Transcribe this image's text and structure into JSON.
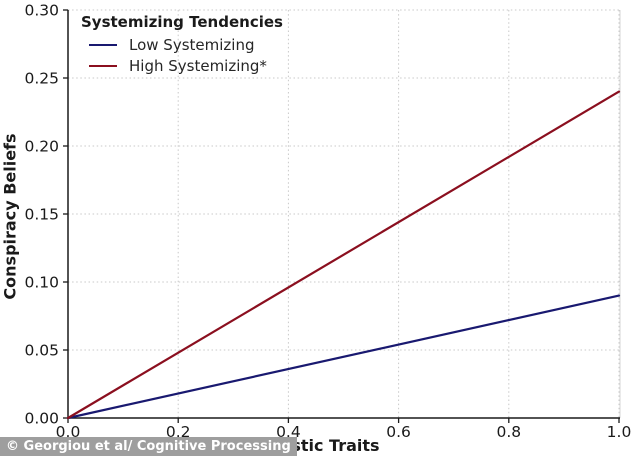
{
  "chart_data": {
    "type": "line",
    "title": "",
    "xlabel": "Autistic Traits",
    "ylabel": "Conspiracy Beliefs",
    "xlim": [
      0.0,
      1.0
    ],
    "ylim": [
      0.0,
      0.3
    ],
    "x_ticks": [
      0.0,
      0.2,
      0.4,
      0.6,
      0.8,
      1.0
    ],
    "x_tick_labels": [
      "0.0",
      "0.2",
      "0.4",
      "0.6",
      "0.8",
      "1.0"
    ],
    "y_ticks": [
      0.0,
      0.05,
      0.1,
      0.15,
      0.2,
      0.25,
      0.3
    ],
    "y_tick_labels": [
      "0.00",
      "0.05",
      "0.10",
      "0.15",
      "0.20",
      "0.25",
      "0.30"
    ],
    "grid": true,
    "grid_style": "dotted",
    "legend": {
      "title": "Systemizing Tendencies",
      "position": "upper-left",
      "entries": [
        {
          "label": "Low Systemizing",
          "color": "#191970"
        },
        {
          "label": "High Systemizing*",
          "color": "#8b0f1f"
        }
      ]
    },
    "series": [
      {
        "name": "Low Systemizing",
        "color": "#191970",
        "x": [
          0.0,
          1.0
        ],
        "y": [
          0.0,
          0.09
        ]
      },
      {
        "name": "High Systemizing*",
        "color": "#8b0f1f",
        "x": [
          0.0,
          1.0
        ],
        "y": [
          0.0,
          0.24
        ]
      }
    ]
  },
  "watermark": {
    "text": "© Georgiou et al/ Cognitive Processing",
    "bg_color": "#9e9e9e",
    "text_color": "#ffffff"
  },
  "colors": {
    "grid": "#c9c9c9",
    "spine": "#1a1a1a",
    "light_spine": "#d4d4d4",
    "tick_label": "#1a1a1a"
  }
}
